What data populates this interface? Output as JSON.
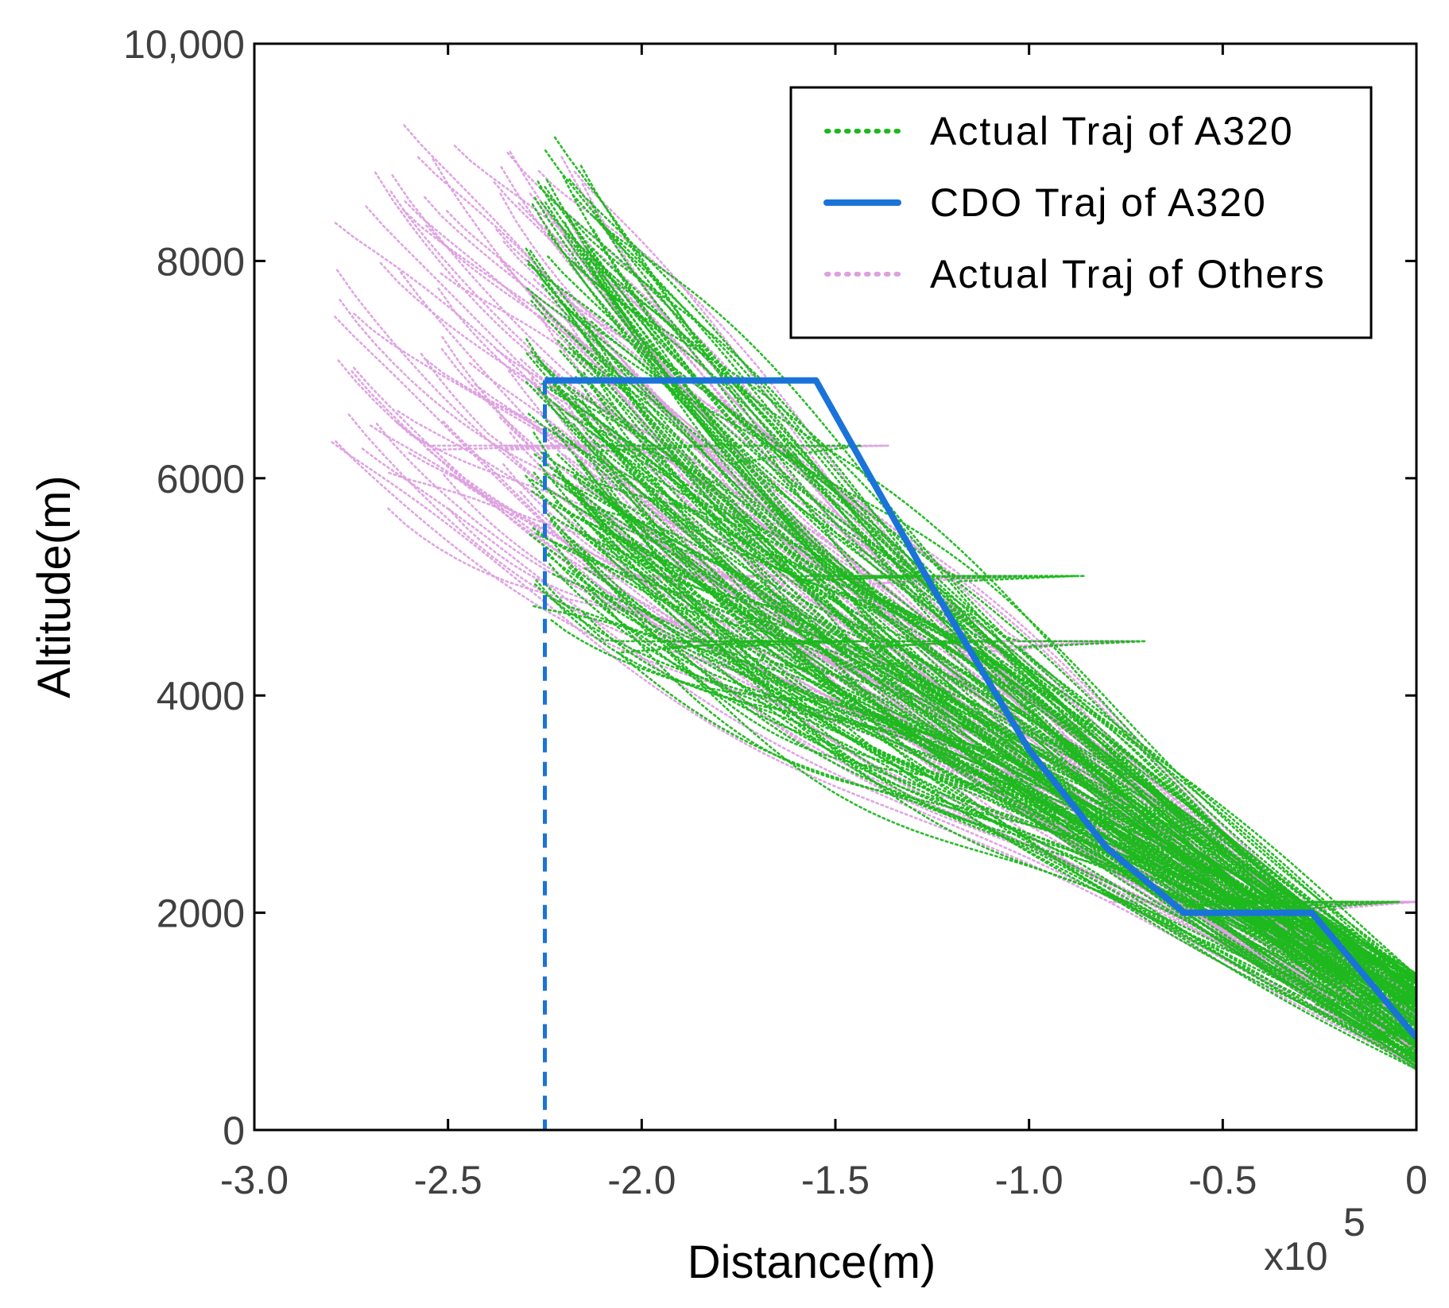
{
  "chart_data": {
    "type": "line",
    "xlabel": "Distance(m)",
    "ylabel": "Altitude(m)",
    "x_multiplier_label": "x10",
    "x_multiplier_exponent": "5",
    "xlim": [
      -3.0,
      0
    ],
    "ylim": [
      0,
      10000
    ],
    "x_ticks": [
      -3.0,
      -2.5,
      -2.0,
      -1.5,
      -1.0,
      -0.5,
      0
    ],
    "x_tick_labels": [
      "-3.0",
      "-2.5",
      "-2.0",
      "-1.5",
      "-1.0",
      "-0.5",
      "0"
    ],
    "y_ticks": [
      0,
      2000,
      4000,
      6000,
      8000,
      10000
    ],
    "y_tick_labels": [
      "0",
      "2000",
      "4000",
      "6000",
      "8000",
      "10,000"
    ],
    "legend_position": "top-right",
    "series": [
      {
        "name": "Actual Traj of A320",
        "style": "dotted",
        "color": "#1db81d",
        "band": {
          "start_x": [
            -2.3,
            -2.1
          ],
          "start_y": [
            4800,
            8900
          ],
          "end_x": [
            0,
            0
          ],
          "end_y": [
            550,
            1450
          ],
          "count": 140
        }
      },
      {
        "name": "CDO Traj of A320",
        "style": "solid",
        "color": "#1a73d9",
        "x": [
          -2.25,
          -1.55,
          -1.25,
          -1.0,
          -0.8,
          -0.6,
          -0.27,
          0
        ],
        "y": [
          6900,
          6900,
          5000,
          3500,
          2600,
          2000,
          2000,
          850
        ],
        "drop_line": {
          "x": -2.25,
          "y_from": 6900,
          "y_to": 0,
          "style": "dashed"
        }
      },
      {
        "name": "Actual Traj of Others",
        "style": "dotted",
        "color": "#dda0e0",
        "band": {
          "start_x": [
            -2.8,
            -2.15
          ],
          "start_y": [
            6000,
            9300
          ],
          "end_x": [
            0,
            0
          ],
          "end_y": [
            550,
            1300
          ],
          "count": 80
        }
      }
    ]
  }
}
